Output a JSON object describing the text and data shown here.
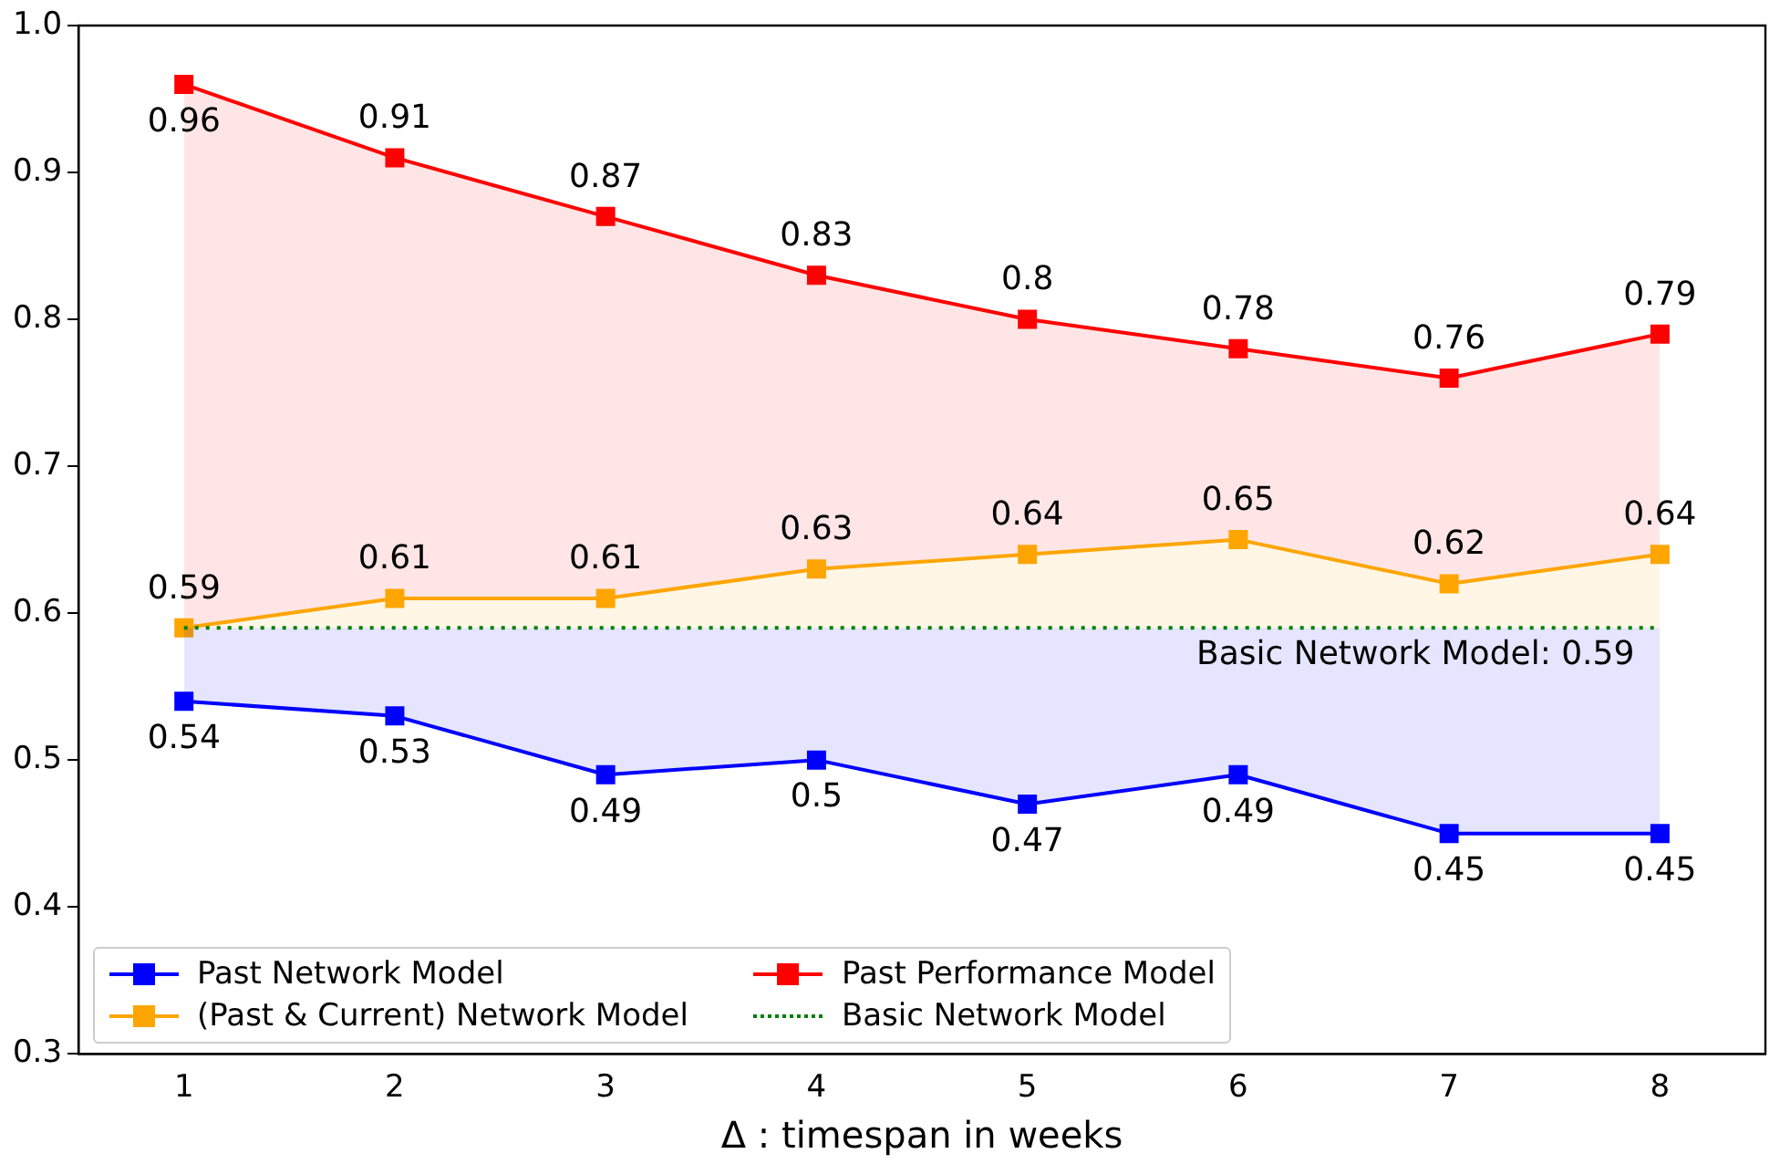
{
  "chart_data": {
    "type": "line",
    "xlabel": "Δ : timespan in weeks",
    "categories": [
      "1",
      "2",
      "3",
      "4",
      "5",
      "6",
      "7",
      "8"
    ],
    "series": [
      {
        "name": "Past Network Model",
        "color": "#0000ff",
        "values": [
          0.54,
          0.53,
          0.49,
          0.5,
          0.47,
          0.49,
          0.45,
          0.45
        ],
        "value_labels": [
          "0.54",
          "0.53",
          "0.49",
          "0.5",
          "0.47",
          "0.49",
          "0.45",
          "0.45"
        ]
      },
      {
        "name": "(Past & Current) Network Model",
        "color": "#ffa500",
        "values": [
          0.59,
          0.61,
          0.61,
          0.63,
          0.64,
          0.65,
          0.62,
          0.64
        ],
        "value_labels": [
          "0.59",
          "0.61",
          "0.61",
          "0.63",
          "0.64",
          "0.65",
          "0.62",
          "0.64"
        ]
      },
      {
        "name": "Past Performance Model",
        "color": "#ff0000",
        "values": [
          0.96,
          0.91,
          0.87,
          0.83,
          0.8,
          0.78,
          0.76,
          0.79
        ],
        "value_labels": [
          "0.96",
          "0.91",
          "0.87",
          "0.83",
          "0.8",
          "0.78",
          "0.76",
          "0.79"
        ]
      },
      {
        "name": "Basic Network Model",
        "color": "#008000",
        "values": [
          0.59,
          0.59,
          0.59,
          0.59,
          0.59,
          0.59,
          0.59,
          0.59
        ],
        "marker": "none",
        "line_style": "dotted"
      }
    ],
    "marker": "square",
    "line_style": "solid",
    "ylim": [
      0.3,
      1.0
    ],
    "yticks": [
      0.3,
      0.4,
      0.5,
      0.6,
      0.7,
      0.8,
      0.9,
      {
        "value": 1.0,
        "label": "1.0"
      }
    ],
    "grid": false,
    "legend": "bottom left",
    "annotations": [
      {
        "text": "Basic Network Model: 0.59",
        "x": "8",
        "y": 0.59
      }
    ]
  }
}
